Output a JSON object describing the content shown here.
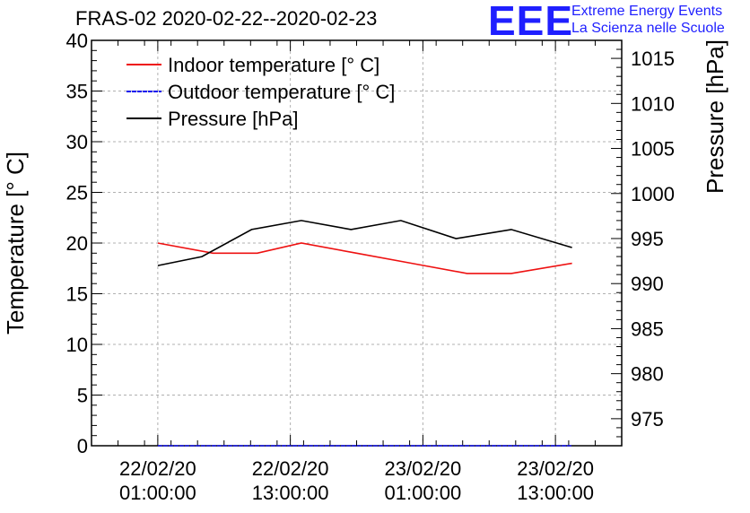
{
  "title": "FRAS-02 2020-02-22--2020-02-23",
  "logo": {
    "letters": "EEE",
    "line1": "Extreme Energy Events",
    "line2": "La Scienza nelle Scuole"
  },
  "colors": {
    "indoor": "#ee1111",
    "outdoor": "#1111ee",
    "pressure": "#000000",
    "logo": "#1f1fff",
    "grid": "#b0b0b0"
  },
  "chart_data": {
    "type": "line",
    "title": "FRAS-02 2020-02-22--2020-02-23",
    "ylabel": "Temperature [° C]",
    "y2label": "Pressure [hPa]",
    "ylim": [
      0,
      40
    ],
    "y2lim": [
      972,
      1017
    ],
    "xlim_hours": [
      -6.0,
      42.0
    ],
    "y_ticks": [
      "0",
      "5",
      "10",
      "15",
      "20",
      "25",
      "30",
      "35",
      "40"
    ],
    "y2_ticks": [
      "975",
      "980",
      "985",
      "990",
      "995",
      "1000",
      "1005",
      "1010",
      "1015"
    ],
    "x_ticks": [
      {
        "hours": 0,
        "date": "22/02/20",
        "time": "01:00:00"
      },
      {
        "hours": 12,
        "date": "22/02/20",
        "time": "13:00:00"
      },
      {
        "hours": 24,
        "date": "23/02/20",
        "time": "01:00:00"
      },
      {
        "hours": 36,
        "date": "23/02/20",
        "time": "13:00:00"
      }
    ],
    "legend_position": "top-left",
    "grid": true,
    "x_hours_note": "hours after 22/02/20 01:00:00",
    "series": [
      {
        "name": "Indoor temperature [° C]",
        "axis": "left",
        "color": "#ee1111",
        "x": [
          0,
          5,
          9,
          13,
          18,
          23,
          28,
          32,
          37.5
        ],
        "values": [
          20,
          19,
          19,
          20,
          19,
          18,
          17,
          17,
          18
        ]
      },
      {
        "name": "Outdoor temperature [° C]",
        "axis": "left",
        "color": "#1111ee",
        "x": [
          0,
          5,
          9,
          13,
          18,
          23,
          28,
          32,
          37.5
        ],
        "values": [
          0,
          0,
          0,
          0,
          0,
          0,
          0,
          0,
          0
        ]
      },
      {
        "name": "Pressure [hPa]",
        "axis": "right",
        "color": "#000000",
        "x": [
          0,
          4,
          8.5,
          13,
          17.5,
          22,
          27,
          32,
          37.5
        ],
        "values": [
          992,
          993,
          996,
          997,
          996,
          997,
          995,
          996,
          994
        ]
      }
    ]
  }
}
